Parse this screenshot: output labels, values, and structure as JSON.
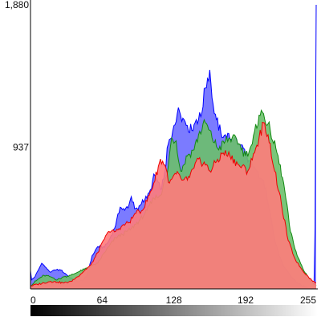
{
  "chart_data": {
    "type": "area",
    "title": "",
    "xlabel": "",
    "ylabel": "",
    "xlim": [
      0,
      255
    ],
    "ylim": [
      0,
      1880
    ],
    "y_ticks": [
      "1,880",
      "937"
    ],
    "x_ticks": [
      "0",
      "64",
      "128",
      "192",
      "255"
    ],
    "grid": false,
    "legend": "none",
    "gradient_bar": {
      "from": "#000000",
      "to": "#ffffff"
    },
    "series": [
      {
        "color_fill": "#7b7bff",
        "color_line": "#0000ff",
        "anchors": [
          [
            0,
            120
          ],
          [
            1,
            60
          ],
          [
            4,
            80
          ],
          [
            10,
            170
          ],
          [
            14,
            140
          ],
          [
            18,
            110
          ],
          [
            22,
            125
          ],
          [
            27,
            125
          ],
          [
            32,
            95
          ],
          [
            38,
            60
          ],
          [
            42,
            50
          ],
          [
            46,
            55
          ],
          [
            50,
            80
          ],
          [
            55,
            220
          ],
          [
            60,
            280
          ],
          [
            66,
            275
          ],
          [
            70,
            320
          ],
          [
            76,
            420
          ],
          [
            80,
            540
          ],
          [
            84,
            520
          ],
          [
            88,
            560
          ],
          [
            90,
            610
          ],
          [
            93,
            530
          ],
          [
            96,
            520
          ],
          [
            100,
            590
          ],
          [
            104,
            600
          ],
          [
            108,
            660
          ],
          [
            110,
            760
          ],
          [
            113,
            720
          ],
          [
            116,
            660
          ],
          [
            119,
            730
          ],
          [
            123,
            960
          ],
          [
            126,
            1000
          ],
          [
            128,
            1080
          ],
          [
            132,
            1200
          ],
          [
            136,
            1130
          ],
          [
            140,
            1080
          ],
          [
            144,
            1050
          ],
          [
            148,
            1120
          ],
          [
            152,
            1140
          ],
          [
            156,
            1330
          ],
          [
            160,
            1450
          ],
          [
            163,
            1220
          ],
          [
            166,
            1120
          ],
          [
            170,
            1030
          ],
          [
            174,
            1020
          ],
          [
            178,
            990
          ],
          [
            182,
            1000
          ],
          [
            186,
            960
          ],
          [
            190,
            930
          ],
          [
            194,
            840
          ],
          [
            198,
            820
          ],
          [
            202,
            780
          ],
          [
            206,
            730
          ],
          [
            210,
            670
          ],
          [
            214,
            500
          ],
          [
            218,
            330
          ],
          [
            222,
            220
          ],
          [
            226,
            150
          ],
          [
            230,
            110
          ],
          [
            234,
            70
          ],
          [
            238,
            40
          ],
          [
            242,
            20
          ],
          [
            246,
            10
          ],
          [
            250,
            5
          ],
          [
            253,
            5
          ],
          [
            254,
            400
          ],
          [
            255,
            1880
          ]
        ]
      },
      {
        "color_fill": "#6cc06c",
        "color_line": "#138a13",
        "anchors": [
          [
            0,
            20
          ],
          [
            6,
            60
          ],
          [
            12,
            90
          ],
          [
            18,
            80
          ],
          [
            24,
            60
          ],
          [
            30,
            80
          ],
          [
            36,
            90
          ],
          [
            42,
            110
          ],
          [
            48,
            130
          ],
          [
            54,
            150
          ],
          [
            60,
            170
          ],
          [
            66,
            240
          ],
          [
            70,
            280
          ],
          [
            76,
            340
          ],
          [
            82,
            360
          ],
          [
            90,
            400
          ],
          [
            98,
            460
          ],
          [
            104,
            520
          ],
          [
            110,
            600
          ],
          [
            116,
            620
          ],
          [
            122,
            760
          ],
          [
            126,
            1000
          ],
          [
            130,
            980
          ],
          [
            134,
            780
          ],
          [
            140,
            880
          ],
          [
            146,
            920
          ],
          [
            150,
            1020
          ],
          [
            156,
            1100
          ],
          [
            162,
            1000
          ],
          [
            168,
            920
          ],
          [
            174,
            980
          ],
          [
            180,
            1000
          ],
          [
            186,
            960
          ],
          [
            192,
            880
          ],
          [
            198,
            960
          ],
          [
            204,
            1150
          ],
          [
            208,
            1160
          ],
          [
            214,
            1050
          ],
          [
            220,
            900
          ],
          [
            226,
            700
          ],
          [
            232,
            380
          ],
          [
            238,
            220
          ],
          [
            244,
            120
          ],
          [
            250,
            60
          ],
          [
            253,
            30
          ],
          [
            255,
            20
          ]
        ]
      },
      {
        "color_fill": "#ff7b7b",
        "color_line": "#ee0000",
        "anchors": [
          [
            0,
            20
          ],
          [
            6,
            30
          ],
          [
            12,
            40
          ],
          [
            18,
            50
          ],
          [
            24,
            45
          ],
          [
            30,
            40
          ],
          [
            36,
            50
          ],
          [
            42,
            80
          ],
          [
            48,
            120
          ],
          [
            54,
            160
          ],
          [
            60,
            240
          ],
          [
            66,
            330
          ],
          [
            70,
            380
          ],
          [
            76,
            380
          ],
          [
            82,
            420
          ],
          [
            88,
            440
          ],
          [
            94,
            500
          ],
          [
            100,
            520
          ],
          [
            106,
            620
          ],
          [
            110,
            700
          ],
          [
            116,
            860
          ],
          [
            120,
            820
          ],
          [
            124,
            700
          ],
          [
            130,
            760
          ],
          [
            136,
            720
          ],
          [
            140,
            720
          ],
          [
            146,
            800
          ],
          [
            150,
            860
          ],
          [
            156,
            820
          ],
          [
            160,
            780
          ],
          [
            166,
            840
          ],
          [
            172,
            900
          ],
          [
            178,
            880
          ],
          [
            186,
            820
          ],
          [
            194,
            780
          ],
          [
            200,
            900
          ],
          [
            204,
            1000
          ],
          [
            208,
            1100
          ],
          [
            212,
            1020
          ],
          [
            218,
            780
          ],
          [
            224,
            560
          ],
          [
            230,
            320
          ],
          [
            236,
            200
          ],
          [
            242,
            130
          ],
          [
            248,
            80
          ],
          [
            252,
            50
          ],
          [
            255,
            40
          ]
        ]
      }
    ]
  }
}
